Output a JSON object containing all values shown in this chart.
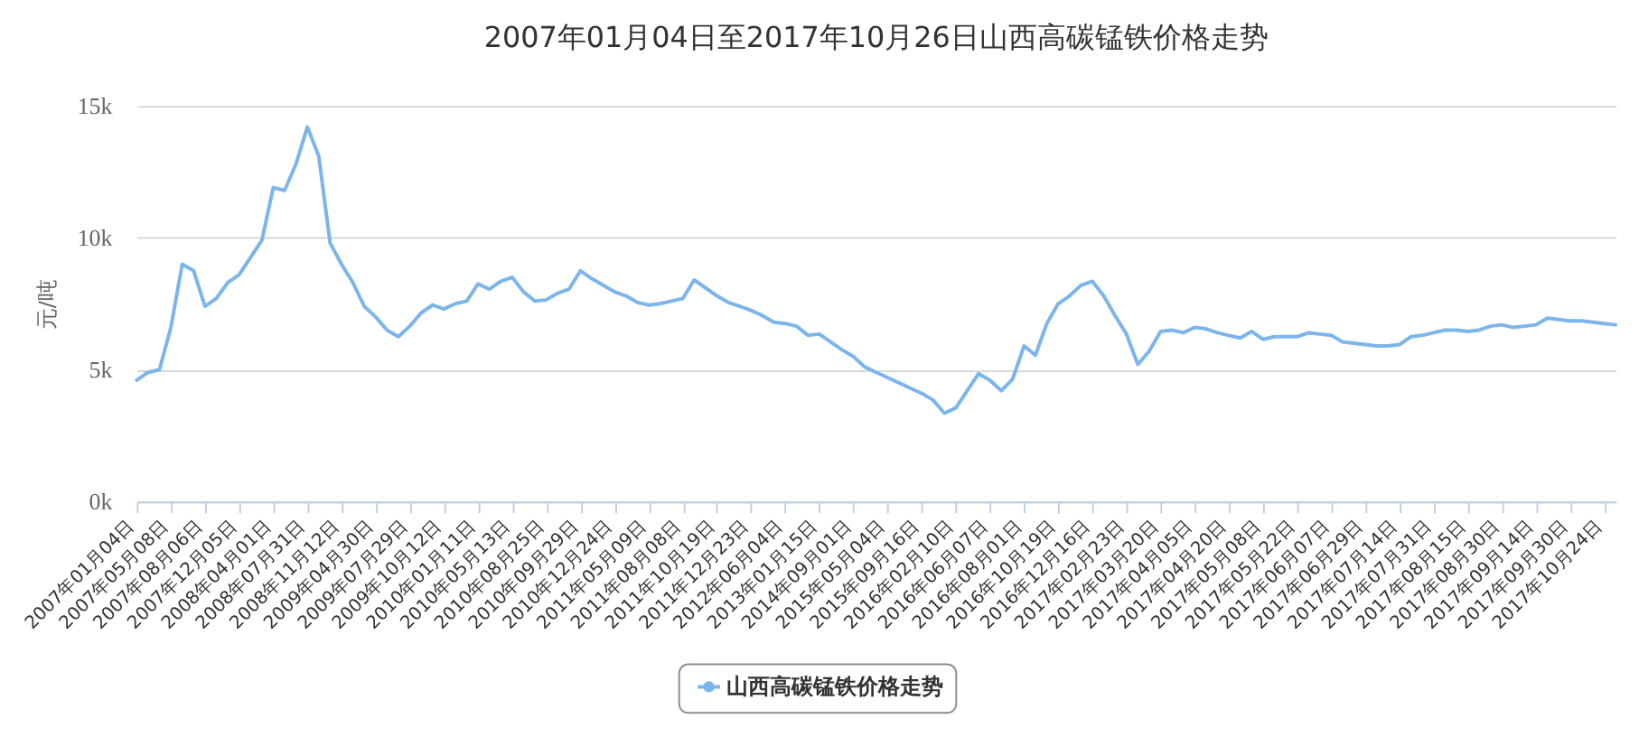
{
  "chart_data": {
    "type": "line",
    "title": "2007年01月04日至2017年10月26日山西高碳锰铁价格走势",
    "ylabel": "元/吨",
    "categories": [
      "2007年01月04日",
      null,
      null,
      "2007年05月08日",
      null,
      null,
      "2007年08月06日",
      null,
      null,
      "2007年12月05日",
      null,
      null,
      "2008年04月01日",
      null,
      null,
      "2008年07月31日",
      null,
      null,
      "2008年11月12日",
      null,
      null,
      "2009年04月30日",
      null,
      null,
      "2009年07月29日",
      null,
      null,
      "2009年10月12日",
      null,
      null,
      "2010年01月11日",
      null,
      null,
      "2010年05月13日",
      null,
      null,
      "2010年08月25日",
      null,
      null,
      "2010年09月29日",
      null,
      null,
      "2010年12月24日",
      null,
      null,
      "2011年05月09日",
      null,
      null,
      "2011年08月08日",
      null,
      null,
      "2011年10月19日",
      null,
      null,
      "2011年12月23日",
      null,
      null,
      "2012年06月04日",
      null,
      null,
      "2013年01月15日",
      null,
      null,
      "2014年09月01日",
      null,
      null,
      "2015年05月04日",
      null,
      null,
      "2015年09月16日",
      null,
      null,
      "2016年02月10日",
      null,
      null,
      "2016年06月07日",
      null,
      null,
      "2016年08月01日",
      null,
      null,
      "2016年10月19日",
      null,
      null,
      "2016年12月16日",
      null,
      null,
      "2017年02月23日",
      null,
      null,
      "2017年03月20日",
      null,
      null,
      "2017年04月05日",
      null,
      null,
      "2017年04月20日",
      null,
      null,
      "2017年05月08日",
      null,
      null,
      "2017年05月22日",
      null,
      null,
      "2017年06月07日",
      null,
      null,
      "2017年06月29日",
      null,
      null,
      "2017年07月14日",
      null,
      null,
      "2017年07月31日",
      null,
      null,
      "2017年08月15日",
      null,
      null,
      "2017年08月30日",
      null,
      null,
      "2017年09月14日",
      null,
      null,
      "2017年09月30日",
      null,
      null,
      "2017年10月24日",
      null
    ],
    "series": [
      {
        "name": "山西高碳锰铁价格走势",
        "color": "#7cb5ec",
        "values": [
          4600,
          4900,
          5000,
          6600,
          9000,
          8750,
          7400,
          7700,
          8300,
          8600,
          9250,
          9900,
          11900,
          11800,
          12800,
          14200,
          13100,
          9800,
          9000,
          8300,
          7400,
          7000,
          6500,
          6250,
          6650,
          7150,
          7450,
          7300,
          7500,
          7600,
          8250,
          8050,
          8350,
          8500,
          7950,
          7600,
          7650,
          7900,
          8050,
          8750,
          8450,
          8200,
          7950,
          7800,
          7550,
          7450,
          7500,
          7600,
          7700,
          8400,
          8100,
          7800,
          7550,
          7400,
          7250,
          7050,
          6800,
          6750,
          6650,
          6300,
          6350,
          6050,
          5750,
          5500,
          5100,
          4900,
          4700,
          4500,
          4300,
          4100,
          3850,
          3350,
          3550,
          4200,
          4850,
          4600,
          4200,
          4650,
          5900,
          5550,
          6750,
          7500,
          7800,
          8200,
          8350,
          7800,
          7050,
          6350,
          5200,
          5700,
          6450,
          6500,
          6400,
          6600,
          6550,
          6400,
          6300,
          6200,
          6450,
          6150,
          6250,
          6250,
          6250,
          6400,
          6350,
          6300,
          6050,
          6000,
          5950,
          5900,
          5900,
          5950,
          6250,
          6300,
          6400,
          6500,
          6500,
          6450,
          6500,
          6650,
          6700,
          6600,
          6650,
          6700,
          6950,
          6900,
          6850,
          6850,
          6800,
          6750,
          6700
        ]
      }
    ],
    "ylim": [
      0,
      15000
    ],
    "yticks": [
      {
        "value": 0,
        "label": "0k"
      },
      {
        "value": 5000,
        "label": "5k"
      },
      {
        "value": 10000,
        "label": "10k"
      },
      {
        "value": 15000,
        "label": "15k"
      }
    ],
    "grid": "y",
    "legend": "bottom"
  }
}
